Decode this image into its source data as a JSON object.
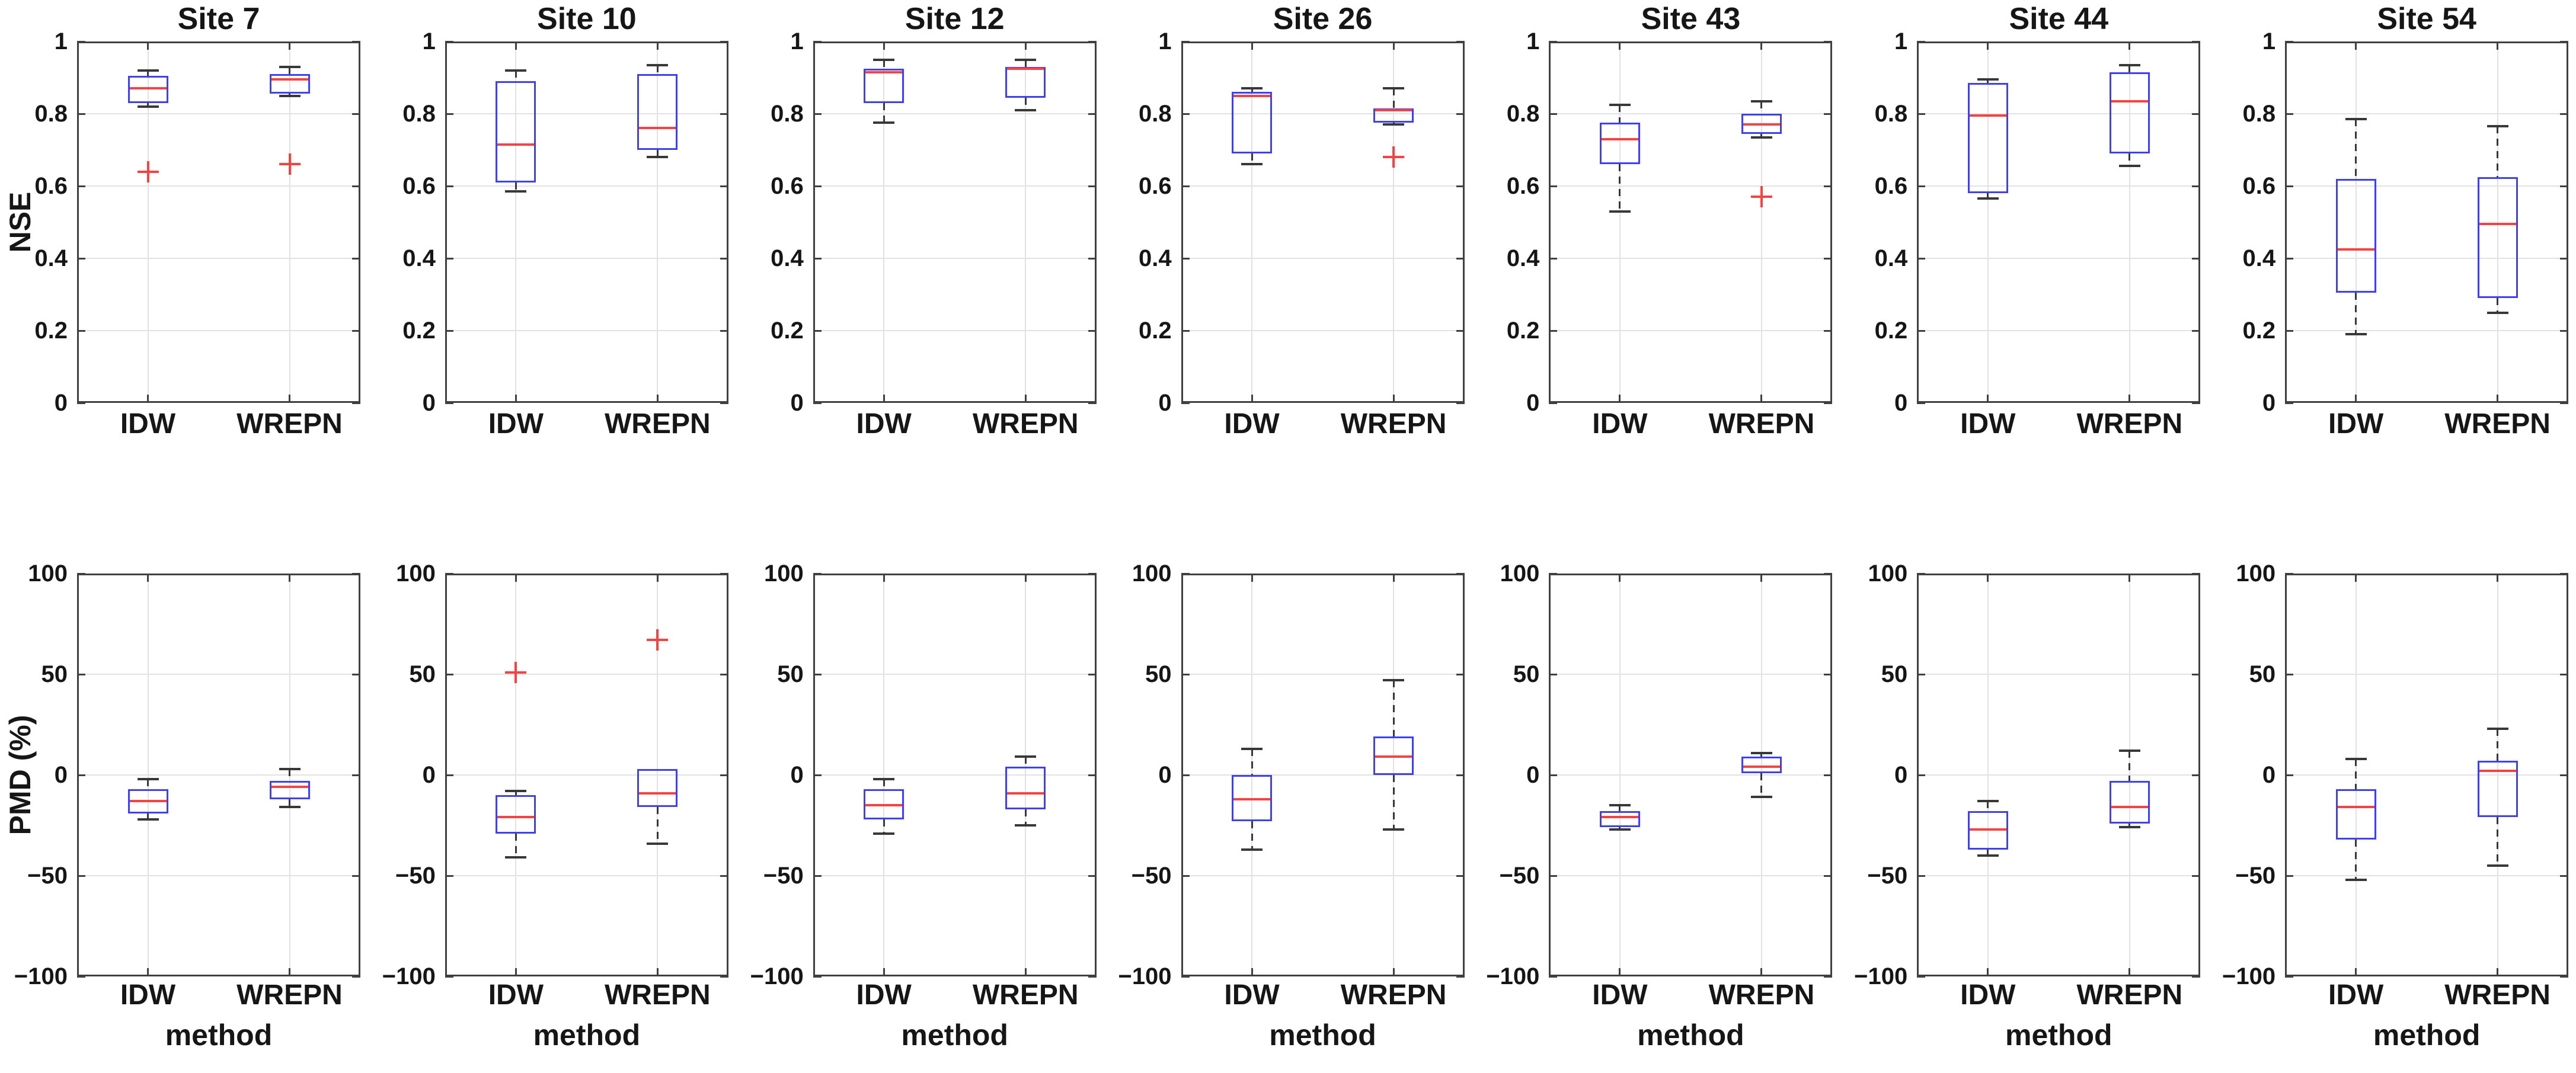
{
  "chart_data": {
    "type": "boxplot",
    "layout": "2 metric rows x 7 site columns, grid on, no legend",
    "categories": [
      "IDW",
      "WREPN"
    ],
    "columns": [
      "Site 7",
      "Site 10",
      "Site 12",
      "Site 26",
      "Site 43",
      "Site 44",
      "Site 54"
    ],
    "colors": {
      "box_edge": "#4040f0",
      "median": "#f54343",
      "whisker": "#383838",
      "outlier": "#f54343",
      "grid": "#e2e2e2",
      "axis_edge": "#404040",
      "text": "#161616",
      "background": "#ffffff"
    },
    "rows": [
      {
        "metric": "NSE",
        "ylabel": "NSE",
        "xlabel": "",
        "ylim": [
          0,
          1
        ],
        "show_titles": true,
        "yticks": [
          {
            "v": 1,
            "label": "1"
          },
          {
            "v": 0.8,
            "label": "0.8"
          },
          {
            "v": 0.6,
            "label": "0.6"
          },
          {
            "v": 0.4,
            "label": "0.4"
          },
          {
            "v": 0.2,
            "label": "0.2"
          },
          {
            "v": 0,
            "label": "0"
          }
        ],
        "subplots": [
          {
            "site": "Site 7",
            "boxes": [
              {
                "category": "IDW",
                "whisker_low": 0.82,
                "q1": 0.83,
                "median": 0.87,
                "q3": 0.905,
                "whisker_high": 0.92,
                "outliers": [
                  0.64
                ]
              },
              {
                "category": "WREPN",
                "whisker_low": 0.85,
                "q1": 0.855,
                "median": 0.895,
                "q3": 0.91,
                "whisker_high": 0.93,
                "outliers": [
                  0.66
                ]
              }
            ]
          },
          {
            "site": "Site 10",
            "boxes": [
              {
                "category": "IDW",
                "whisker_low": 0.585,
                "q1": 0.61,
                "median": 0.715,
                "q3": 0.89,
                "whisker_high": 0.92,
                "outliers": []
              },
              {
                "category": "WREPN",
                "whisker_low": 0.68,
                "q1": 0.7,
                "median": 0.76,
                "q3": 0.91,
                "whisker_high": 0.935,
                "outliers": []
              }
            ]
          },
          {
            "site": "Site 12",
            "boxes": [
              {
                "category": "IDW",
                "whisker_low": 0.775,
                "q1": 0.83,
                "median": 0.915,
                "q3": 0.925,
                "whisker_high": 0.95,
                "outliers": []
              },
              {
                "category": "WREPN",
                "whisker_low": 0.81,
                "q1": 0.845,
                "median": 0.925,
                "q3": 0.93,
                "whisker_high": 0.95,
                "outliers": []
              }
            ]
          },
          {
            "site": "Site 26",
            "boxes": [
              {
                "category": "IDW",
                "whisker_low": 0.66,
                "q1": 0.69,
                "median": 0.85,
                "q3": 0.86,
                "whisker_high": 0.87,
                "outliers": []
              },
              {
                "category": "WREPN",
                "whisker_low": 0.77,
                "q1": 0.775,
                "median": 0.81,
                "q3": 0.815,
                "whisker_high": 0.87,
                "outliers": [
                  0.68
                ]
              }
            ]
          },
          {
            "site": "Site 43",
            "boxes": [
              {
                "category": "IDW",
                "whisker_low": 0.53,
                "q1": 0.66,
                "median": 0.73,
                "q3": 0.775,
                "whisker_high": 0.825,
                "outliers": []
              },
              {
                "category": "WREPN",
                "whisker_low": 0.735,
                "q1": 0.745,
                "median": 0.77,
                "q3": 0.8,
                "whisker_high": 0.835,
                "outliers": [
                  0.57
                ]
              }
            ]
          },
          {
            "site": "Site 44",
            "boxes": [
              {
                "category": "IDW",
                "whisker_low": 0.565,
                "q1": 0.58,
                "median": 0.795,
                "q3": 0.885,
                "whisker_high": 0.895,
                "outliers": []
              },
              {
                "category": "WREPN",
                "whisker_low": 0.655,
                "q1": 0.69,
                "median": 0.835,
                "q3": 0.915,
                "whisker_high": 0.935,
                "outliers": []
              }
            ]
          },
          {
            "site": "Site 54",
            "boxes": [
              {
                "category": "IDW",
                "whisker_low": 0.19,
                "q1": 0.305,
                "median": 0.425,
                "q3": 0.62,
                "whisker_high": 0.785,
                "outliers": []
              },
              {
                "category": "WREPN",
                "whisker_low": 0.25,
                "q1": 0.29,
                "median": 0.495,
                "q3": 0.625,
                "whisker_high": 0.765,
                "outliers": []
              }
            ]
          }
        ]
      },
      {
        "metric": "PMD",
        "ylabel": "PMD (%)",
        "xlabel": "method",
        "ylim": [
          -100,
          100
        ],
        "show_titles": false,
        "yticks": [
          {
            "v": 100,
            "label": "100"
          },
          {
            "v": 50,
            "label": "50"
          },
          {
            "v": 0,
            "label": "0"
          },
          {
            "v": -50,
            "label": "−50"
          },
          {
            "v": -100,
            "label": "−100"
          }
        ],
        "subplots": [
          {
            "site": "Site 7",
            "boxes": [
              {
                "category": "IDW",
                "whisker_low": -22,
                "q1": -19,
                "median": -13,
                "q3": -7,
                "whisker_high": -2,
                "outliers": []
              },
              {
                "category": "WREPN",
                "whisker_low": -16,
                "q1": -12,
                "median": -6,
                "q3": -3,
                "whisker_high": 3,
                "outliers": []
              }
            ]
          },
          {
            "site": "Site 10",
            "boxes": [
              {
                "category": "IDW",
                "whisker_low": -41,
                "q1": -29,
                "median": -21,
                "q3": -10,
                "whisker_high": -8,
                "outliers": [
                  51
                ]
              },
              {
                "category": "WREPN",
                "whisker_low": -34,
                "q1": -16,
                "median": -9,
                "q3": 3,
                "whisker_high": 3,
                "outliers": [
                  67
                ]
              }
            ]
          },
          {
            "site": "Site 12",
            "boxes": [
              {
                "category": "IDW",
                "whisker_low": -29,
                "q1": -22,
                "median": -15,
                "q3": -7,
                "whisker_high": -2,
                "outliers": []
              },
              {
                "category": "WREPN",
                "whisker_low": -25,
                "q1": -17,
                "median": -9,
                "q3": 4,
                "whisker_high": 9,
                "outliers": []
              }
            ]
          },
          {
            "site": "Site 26",
            "boxes": [
              {
                "category": "IDW",
                "whisker_low": -37,
                "q1": -23,
                "median": -12,
                "q3": 0,
                "whisker_high": 13,
                "outliers": []
              },
              {
                "category": "WREPN",
                "whisker_low": -27,
                "q1": 0,
                "median": 9,
                "q3": 19,
                "whisker_high": 47,
                "outliers": []
              }
            ]
          },
          {
            "site": "Site 43",
            "boxes": [
              {
                "category": "IDW",
                "whisker_low": -27,
                "q1": -26,
                "median": -21,
                "q3": -18,
                "whisker_high": -15,
                "outliers": []
              },
              {
                "category": "WREPN",
                "whisker_low": -11,
                "q1": 1,
                "median": 4,
                "q3": 9,
                "whisker_high": 11,
                "outliers": []
              }
            ]
          },
          {
            "site": "Site 44",
            "boxes": [
              {
                "category": "IDW",
                "whisker_low": -40,
                "q1": -37,
                "median": -27,
                "q3": -18,
                "whisker_high": -13,
                "outliers": []
              },
              {
                "category": "WREPN",
                "whisker_low": -26,
                "q1": -24,
                "median": -16,
                "q3": -3,
                "whisker_high": 12,
                "outliers": []
              }
            ]
          },
          {
            "site": "Site 54",
            "boxes": [
              {
                "category": "IDW",
                "whisker_low": -52,
                "q1": -32,
                "median": -16,
                "q3": -7,
                "whisker_high": 8,
                "outliers": []
              },
              {
                "category": "WREPN",
                "whisker_low": -45,
                "q1": -21,
                "median": 2,
                "q3": 7,
                "whisker_high": 23,
                "outliers": []
              }
            ]
          }
        ]
      }
    ]
  }
}
